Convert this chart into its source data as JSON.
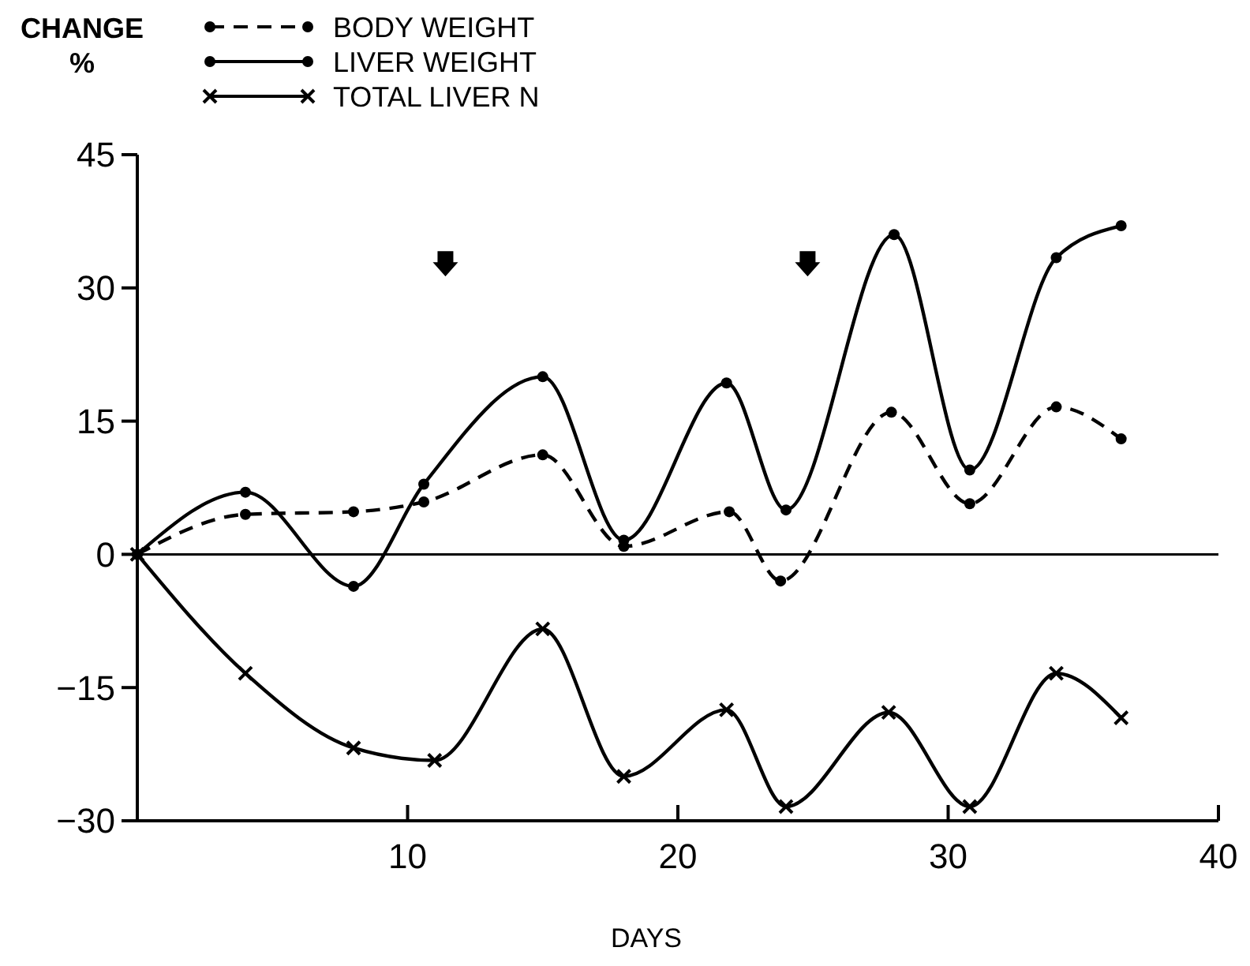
{
  "chart_data": {
    "type": "line",
    "xlabel": "DAYS",
    "ylabel": "CHANGE\n%",
    "xlim": [
      0,
      40
    ],
    "xticks": [
      10,
      20,
      30,
      40
    ],
    "ylim": [
      -30,
      45
    ],
    "yticks": [
      -30,
      -15,
      0,
      15,
      30,
      45
    ],
    "legend": "top left",
    "grid": false,
    "ref_lines": [
      {
        "axis": "y",
        "value": 0
      }
    ],
    "series": [
      {
        "name": "BODY WEIGHT",
        "color": "#000000",
        "marker": "circle",
        "line_style": "dashed",
        "x": [
          0,
          4,
          8,
          10.6,
          15,
          18,
          21.9,
          23.8,
          27.9,
          30.8,
          34,
          36.4
        ],
        "values": [
          0,
          4.5,
          4.8,
          5.9,
          11.2,
          0.9,
          4.8,
          -3,
          16,
          5.7,
          16.6,
          13
        ]
      },
      {
        "name": "LIVER WEIGHT",
        "color": "#000000",
        "marker": "circle",
        "line_style": "solid",
        "x": [
          0,
          4,
          8,
          10.6,
          15,
          18,
          21.8,
          24,
          28,
          30.8,
          34,
          36.4
        ],
        "values": [
          0,
          7,
          -3.6,
          7.9,
          20,
          1.6,
          19.3,
          5,
          36,
          9.5,
          33.4,
          37
        ]
      },
      {
        "name": "TOTAL LIVER N",
        "color": "#000000",
        "marker": "cross",
        "line_style": "solid",
        "x": [
          0,
          4,
          8,
          11,
          15,
          18,
          21.8,
          24,
          27.8,
          30.8,
          34,
          36.4
        ],
        "values": [
          0,
          -13.4,
          -21.8,
          -23.2,
          -8.4,
          -25,
          -17.5,
          -28.4,
          -17.8,
          -28.4,
          -13.4,
          -18.4
        ]
      }
    ]
  }
}
